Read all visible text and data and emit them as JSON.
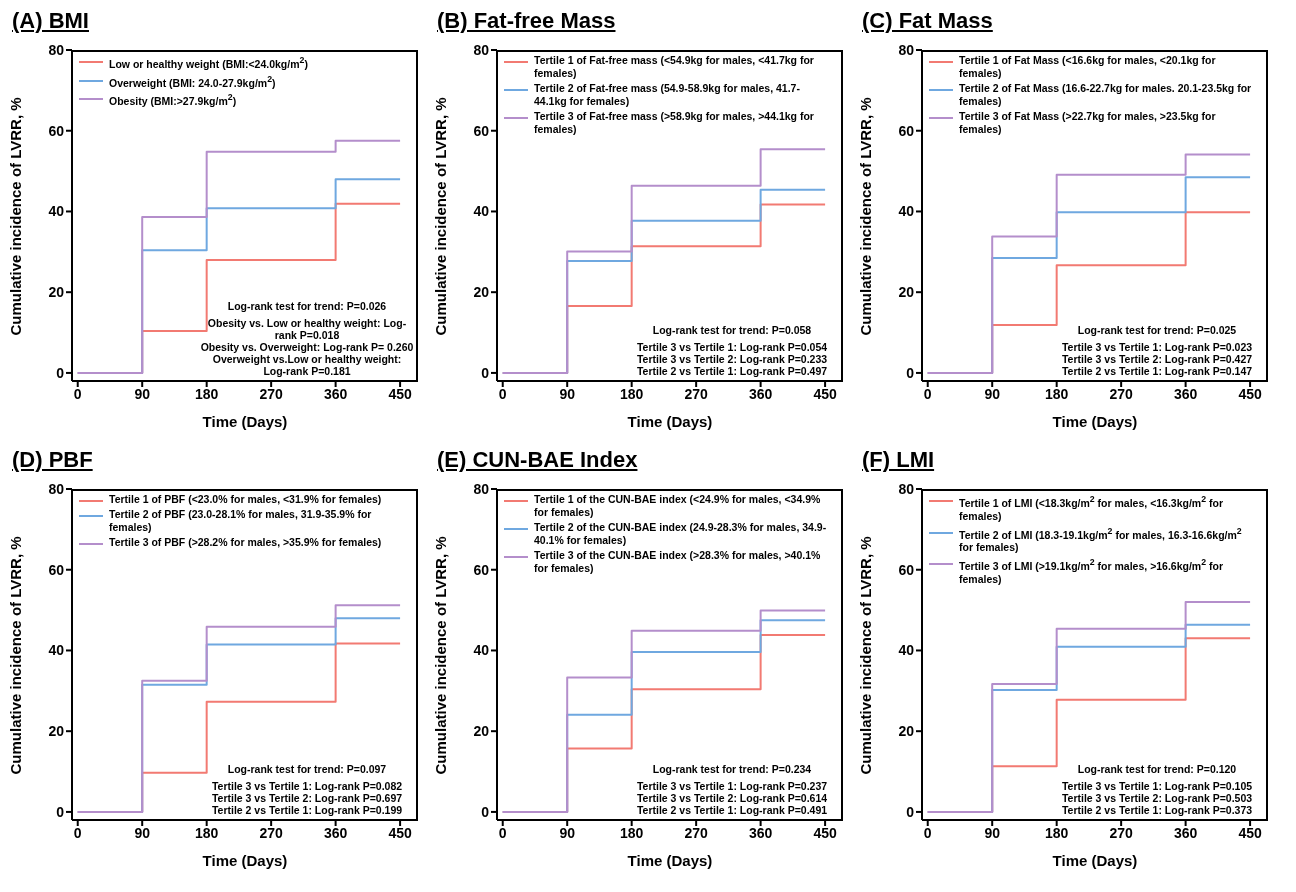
{
  "chart_data": [
    {
      "type": "step",
      "title": "(A) BMI",
      "xlabel": "Time (Days)",
      "ylabel": "Cumulative incidence of LVRR, %",
      "x": [
        0,
        90,
        180,
        360,
        450
      ],
      "xlim": [
        -8,
        475
      ],
      "xticks": [
        0,
        90,
        180,
        270,
        360,
        450
      ],
      "ylim": [
        -2,
        80
      ],
      "yticks": [
        0,
        20,
        40,
        60,
        80
      ],
      "grid": false,
      "legend": "top left",
      "marker": "none",
      "series": [
        {
          "name": "Low or healthy weight (BMI:<24.0kg/m$^{2}$)",
          "color": "#f27a72",
          "values": [
            0,
            10.4,
            28,
            41.9,
            41.9
          ]
        },
        {
          "name": "Overweight (BMI: 24.0-27.9kg/m$^{2}$)",
          "color": "#6fa8e0",
          "values": [
            0,
            30.4,
            40.8,
            48,
            48
          ]
        },
        {
          "name": "Obesity (BMI:>27.9kg/m$^{2}$)",
          "color": "#b48ecb",
          "values": [
            0,
            38.6,
            54.8,
            57.5,
            57.5
          ]
        }
      ],
      "annotations": [
        "Log-rank test for trend: P=0.026",
        "Obesity vs. Low or healthy weight: Log-rank P=0.018",
        "Obesity vs. Overweight: Log-rank P= 0.260",
        "Overweight vs.Low or healthy weight: Log-rank P=0.181"
      ]
    },
    {
      "type": "step",
      "title": "(B) Fat-free Mass",
      "xlabel": "Time (Days)",
      "ylabel": "Cumulative incidence of LVRR, %",
      "x": [
        0,
        90,
        180,
        360,
        450
      ],
      "xlim": [
        -8,
        475
      ],
      "xticks": [
        0,
        90,
        180,
        270,
        360,
        450
      ],
      "ylim": [
        -2,
        80
      ],
      "yticks": [
        0,
        20,
        40,
        60,
        80
      ],
      "grid": false,
      "legend": "top left",
      "marker": "none",
      "series": [
        {
          "name": "Tertile 1 of Fat-free mass (<54.9kg for males, <41.7kg for females)",
          "color": "#f27a72",
          "values": [
            0,
            16.6,
            31.4,
            41.7,
            41.7
          ]
        },
        {
          "name": "Tertile 2 of Fat-free mass (54.9-58.9kg for males, 41.7-44.1kg for females)",
          "color": "#6fa8e0",
          "values": [
            0,
            27.7,
            37.7,
            45.4,
            45.4
          ]
        },
        {
          "name": "Tertile 3 of Fat-free mass (>58.9kg for males, >44.1kg for females)",
          "color": "#b48ecb",
          "values": [
            0,
            30.1,
            46.4,
            55.4,
            55.4
          ]
        }
      ],
      "annotations": [
        "Log-rank test for trend: P=0.058",
        "Tertile 3 vs Tertile 1: Log-rank P=0.054",
        "Tertile 3 vs Tertile 2: Log-rank P=0.233",
        "Tertile 2 vs Tertile 1: Log-rank P=0.497"
      ]
    },
    {
      "type": "step",
      "title": "(C) Fat Mass",
      "xlabel": "Time (Days)",
      "ylabel": "Cumulative incidence of LVRR, %",
      "x": [
        0,
        90,
        180,
        360,
        450
      ],
      "xlim": [
        -8,
        475
      ],
      "xticks": [
        0,
        90,
        180,
        270,
        360,
        450
      ],
      "ylim": [
        -2,
        80
      ],
      "yticks": [
        0,
        20,
        40,
        60,
        80
      ],
      "grid": false,
      "legend": "top left",
      "marker": "none",
      "series": [
        {
          "name": "Tertile 1 of Fat Mass (<16.6kg for males, <20.1kg for females)",
          "color": "#f27a72",
          "values": [
            0,
            11.9,
            26.7,
            39.8,
            39.8
          ]
        },
        {
          "name": "Tertile 2 of Fat Mass (16.6-22.7kg for males. 20.1-23.5kg for females)",
          "color": "#6fa8e0",
          "values": [
            0,
            28.5,
            39.8,
            48.5,
            48.5
          ]
        },
        {
          "name": "Tertile 3 of Fat Mass (>22.7kg for males, >23.5kg for females)",
          "color": "#b48ecb",
          "values": [
            0,
            33.8,
            49.1,
            54.1,
            54.1
          ]
        }
      ],
      "annotations": [
        "Log-rank test for trend: P=0.025",
        "Tertile 3 vs Tertile 1: Log-rank P=0.023",
        "Tertile 3 vs Tertile 2: Log-rank P=0.427",
        "Tertile 2 vs Tertile 1: Log-rank P=0.147"
      ]
    },
    {
      "type": "step",
      "title": "(D) PBF",
      "xlabel": "Time (Days)",
      "ylabel": "Cumulative incidence of LVRR, %",
      "x": [
        0,
        90,
        180,
        360,
        450
      ],
      "xlim": [
        -8,
        475
      ],
      "xticks": [
        0,
        90,
        180,
        270,
        360,
        450
      ],
      "ylim": [
        -2,
        80
      ],
      "yticks": [
        0,
        20,
        40,
        60,
        80
      ],
      "grid": false,
      "legend": "top left",
      "marker": "none",
      "series": [
        {
          "name": "Tertile 1 of PBF (<23.0% for males, <31.9% for females)",
          "color": "#f27a72",
          "values": [
            0,
            9.7,
            27.3,
            41.7,
            41.7
          ]
        },
        {
          "name": "Tertile 2 of PBF (23.0-28.1% for males, 31.9-35.9% for females)",
          "color": "#6fa8e0",
          "values": [
            0,
            31.5,
            41.5,
            48,
            48
          ]
        },
        {
          "name": "Tertile 3 of PBF (>28.2% for males, >35.9% for females)",
          "color": "#b48ecb",
          "values": [
            0,
            32.5,
            45.9,
            51.2,
            51.2
          ]
        }
      ],
      "annotations": [
        "Log-rank test for trend: P=0.097",
        "Tertile 3 vs Tertile 1: Log-rank P=0.082",
        "Tertile 3 vs Tertile 2: Log-rank P=0.697",
        "Tertile 2 vs Tertile 1: Log-rank P=0.199"
      ]
    },
    {
      "type": "step",
      "title": "(E) CUN-BAE Index",
      "xlabel": "Time (Days)",
      "ylabel": "Cumulative incidence of LVRR, %",
      "x": [
        0,
        90,
        180,
        360,
        450
      ],
      "xlim": [
        -8,
        475
      ],
      "xticks": [
        0,
        90,
        180,
        270,
        360,
        450
      ],
      "ylim": [
        -2,
        80
      ],
      "yticks": [
        0,
        20,
        40,
        60,
        80
      ],
      "grid": false,
      "legend": "top left",
      "marker": "none",
      "series": [
        {
          "name": "Tertile 1 of the CUN-BAE index (<24.9% for males, <34.9% for females)",
          "color": "#f27a72",
          "values": [
            0,
            15.7,
            30.4,
            43.8,
            43.8
          ]
        },
        {
          "name": "Tertile 2 of the CUN-BAE index (24.9-28.3% for males, 34.9-40.1% for females)",
          "color": "#6fa8e0",
          "values": [
            0,
            24.1,
            39.6,
            47.5,
            47.5
          ]
        },
        {
          "name": "Tertile 3 of the CUN-BAE index (>28.3% for males, >40.1% for females)",
          "color": "#b48ecb",
          "values": [
            0,
            33.3,
            44.9,
            49.9,
            49.9
          ]
        }
      ],
      "annotations": [
        "Log-rank test for trend: P=0.234",
        "Tertile 3 vs Tertile 1: Log-rank P=0.237",
        "Tertile 3 vs Tertile 2: Log-rank P=0.614",
        "Tertile 2 vs Tertile 1: Log-rank P=0.491"
      ]
    },
    {
      "type": "step",
      "title": "(F) LMI",
      "xlabel": "Time (Days)",
      "ylabel": "Cumulative incidence of LVRR, %",
      "x": [
        0,
        90,
        180,
        360,
        450
      ],
      "xlim": [
        -8,
        475
      ],
      "xticks": [
        0,
        90,
        180,
        270,
        360,
        450
      ],
      "ylim": [
        -2,
        80
      ],
      "yticks": [
        0,
        20,
        40,
        60,
        80
      ],
      "grid": false,
      "legend": "top left",
      "marker": "none",
      "series": [
        {
          "name": "Tertile 1 of LMI (<18.3kg/m$^{2}$ for males, <16.3kg/m$^{2}$ for females)",
          "color": "#f27a72",
          "values": [
            0,
            11.3,
            27.8,
            43,
            43
          ]
        },
        {
          "name": "Tertile 2 of LMI (18.3-19.1kg/m$^{2}$ for males, 16.3-16.6kg/m$^{2}$ for females)",
          "color": "#6fa8e0",
          "values": [
            0,
            30.2,
            40.9,
            46.4,
            46.4
          ]
        },
        {
          "name": "Tertile 3 of LMI (>19.1kg/m$^{2}$ for males, >16.6kg/m$^{2}$ for females)",
          "color": "#b48ecb",
          "values": [
            0,
            31.7,
            45.4,
            52,
            52
          ]
        }
      ],
      "annotations": [
        "Log-rank test for trend: P=0.120",
        "Tertile 3 vs Tertile 1: Log-rank P=0.105",
        "Tertile 3 vs Tertile 2: Log-rank P=0.503",
        "Tertile 2 vs Tertile 1: Log-rank P=0.373"
      ]
    }
  ]
}
